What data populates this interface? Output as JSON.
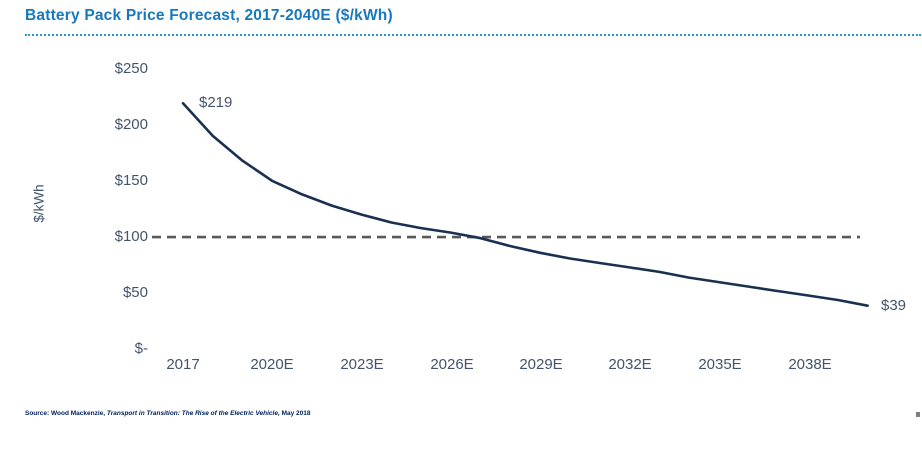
{
  "header": {
    "title": "Battery Pack Price Forecast, 2017-2040E ($/kWh)"
  },
  "colors": {
    "title_blue": "#1878BE",
    "underline_blue": "#2E95D3",
    "axis_text": "#44546A",
    "line_navy": "#1B3051",
    "dashed_gray": "#595959",
    "source_navy": "#002060"
  },
  "chart_data": {
    "type": "line",
    "title": "Battery Pack Price Forecast, 2017-2040E ($/kWh)",
    "xlabel": "",
    "ylabel": "$/kWh",
    "x": [
      2017,
      2018,
      2019,
      2020,
      2021,
      2022,
      2023,
      2024,
      2025,
      2026,
      2027,
      2028,
      2029,
      2030,
      2031,
      2032,
      2033,
      2034,
      2035,
      2036,
      2037,
      2038,
      2039,
      2040
    ],
    "values": [
      219,
      190,
      168,
      150,
      138,
      128,
      120,
      113,
      108,
      104,
      99,
      92,
      86,
      81,
      77,
      73,
      69,
      64,
      60,
      56,
      52,
      48,
      44,
      39
    ],
    "x_tick_labels": [
      "2017",
      "2020E",
      "2023E",
      "2026E",
      "2029E",
      "2032E",
      "2035E",
      "2038E"
    ],
    "x_tick_years": [
      2017,
      2020,
      2023,
      2026,
      2029,
      2032,
      2035,
      2038
    ],
    "y_tick_labels": [
      "$250",
      "$200",
      "$150",
      "$100",
      "$50",
      "$-"
    ],
    "y_tick_values": [
      250,
      200,
      150,
      100,
      50,
      0
    ],
    "ylim": [
      0,
      250
    ],
    "xlim": [
      2017,
      2040
    ],
    "grid": false,
    "legend": "none",
    "line_color": "#1B3051",
    "reference_line": {
      "value": 100,
      "style": "dashed",
      "color": "#595959"
    },
    "annotations": [
      {
        "x": 2017,
        "value": 219,
        "label": "$219"
      },
      {
        "x": 2040,
        "value": 39,
        "label": "$39"
      }
    ]
  },
  "source": {
    "part1": "Source: Wood Mackenzie, ",
    "part2": "Transport in Transition: The Rise of the Electric Vehicle,",
    "part3": " May 2018"
  }
}
